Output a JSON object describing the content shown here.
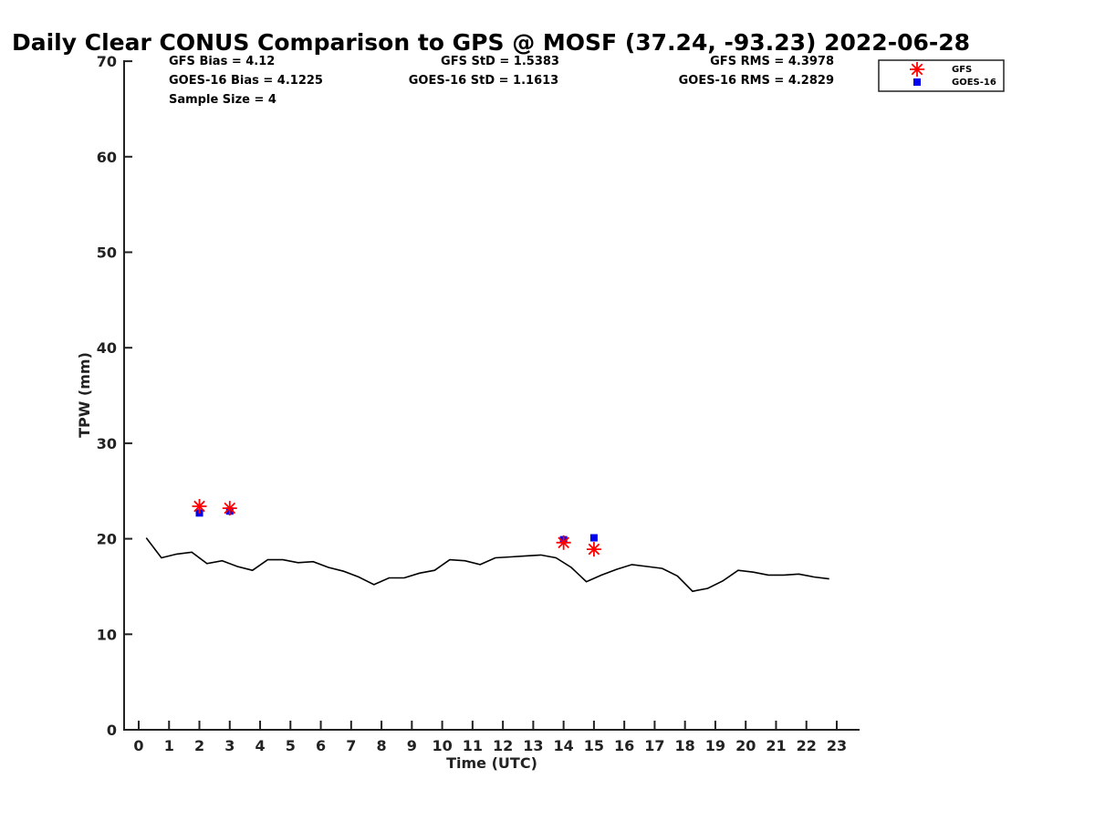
{
  "chart_data": {
    "type": "scatter",
    "title": "Daily Clear CONUS Comparison to GPS @ MOSF (37.24, -93.23) 2022-06-28",
    "xlabel": "Time (UTC)",
    "ylabel": "TPW (mm)",
    "xlim": [
      -0.5,
      23.7
    ],
    "ylim": [
      0,
      70
    ],
    "xticks": [
      0,
      1,
      2,
      3,
      4,
      5,
      6,
      7,
      8,
      9,
      10,
      11,
      12,
      13,
      14,
      15,
      16,
      17,
      18,
      19,
      20,
      21,
      22,
      23
    ],
    "yticks": [
      0,
      10,
      20,
      30,
      40,
      50,
      60,
      70
    ],
    "grid": false,
    "legend_position": "top-right",
    "stats": {
      "gfs_bias": "GFS Bias = 4.12",
      "goes_bias": "GOES-16 Bias = 4.1225",
      "sample_size": "Sample Size = 4",
      "gfs_std": "GFS StD = 1.5383",
      "goes_std": "GOES-16 StD = 1.1613",
      "gfs_rms": "GFS RMS = 4.3978",
      "goes_rms": "GOES-16 RMS = 4.2829"
    },
    "gps_line": {
      "color": "#000000",
      "x": [
        0.25,
        0.75,
        1.25,
        1.75,
        2.25,
        2.75,
        3.25,
        3.75,
        4.25,
        4.75,
        5.25,
        5.75,
        6.25,
        6.75,
        7.25,
        7.75,
        8.25,
        8.75,
        9.25,
        9.75,
        10.25,
        10.75,
        11.25,
        11.75,
        12.25,
        12.75,
        13.25,
        13.75,
        14.25,
        14.75,
        15.25,
        15.75,
        16.25,
        16.75,
        17.25,
        17.75,
        18.25,
        18.75,
        19.25,
        19.75,
        20.25,
        20.75,
        21.25,
        21.75,
        22.25,
        22.75
      ],
      "y": [
        20.1,
        18.0,
        18.4,
        18.6,
        17.4,
        17.7,
        17.1,
        16.7,
        17.8,
        17.8,
        17.5,
        17.6,
        17.0,
        16.6,
        16.0,
        15.2,
        15.9,
        15.9,
        16.4,
        16.7,
        17.8,
        17.7,
        17.3,
        18.0,
        18.1,
        18.2,
        18.3,
        18.0,
        17.0,
        15.5,
        16.2,
        16.8,
        17.3,
        17.1,
        16.9,
        16.1,
        14.5,
        14.8,
        15.6,
        16.7,
        16.5,
        16.2,
        16.2,
        16.3,
        16.0,
        15.8
      ]
    },
    "series": [
      {
        "name": "GFS",
        "marker": "asterisk",
        "color": "#ff0000",
        "x": [
          2,
          3,
          14,
          15
        ],
        "y": [
          23.4,
          23.2,
          19.6,
          18.9
        ]
      },
      {
        "name": "GOES-16",
        "marker": "square",
        "color": "#0000ee",
        "x": [
          2,
          3,
          14,
          15
        ],
        "y": [
          22.7,
          22.9,
          19.9,
          20.1
        ]
      }
    ]
  }
}
